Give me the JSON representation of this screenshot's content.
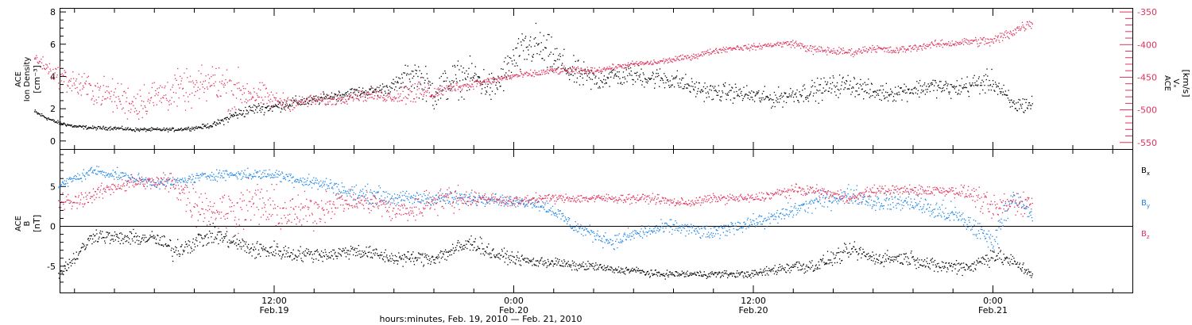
{
  "chart_data": [
    {
      "type": "scatter",
      "panel": "top",
      "ylabel_left_lines": [
        "ACE",
        "Ion Density"
      ],
      "ylabel_left_unit": "[cm⁻³]",
      "ylabel_right_lines": [
        "ACE",
        "Vₓ"
      ],
      "ylabel_right_unit": "[km/s]",
      "left_axis": {
        "ylim": [
          -0.5,
          8.2
        ],
        "ticks": [
          "0",
          "2",
          "4",
          "6",
          "8"
        ],
        "tick_values": [
          0,
          2,
          4,
          6,
          8
        ]
      },
      "right_axis": {
        "ylim": [
          -560,
          -345
        ],
        "ticks": [
          "-350",
          "-400",
          "-450",
          "-500",
          "-550"
        ],
        "tick_values": [
          -350,
          -400,
          -450,
          -500,
          -550
        ],
        "color": "#e0315c"
      },
      "series": [
        {
          "axis": "left",
          "color": "#000000",
          "x_hours": [
            0,
            1,
            2,
            3,
            4,
            5,
            6,
            7,
            8,
            9,
            10,
            11,
            12,
            13,
            14,
            15,
            16,
            17,
            18,
            19,
            20,
            21,
            22,
            23,
            24,
            25,
            26,
            27,
            28,
            29,
            30,
            31,
            32,
            33,
            34,
            35,
            36,
            37,
            38,
            39,
            40,
            41,
            42,
            43,
            44,
            45,
            46,
            47,
            48,
            49,
            50
          ],
          "values": [
            1.8,
            1.2,
            0.9,
            0.8,
            0.8,
            0.7,
            0.7,
            0.7,
            0.8,
            1.0,
            1.6,
            2.0,
            2.1,
            2.4,
            2.5,
            2.8,
            3.0,
            3.1,
            3.4,
            4.2,
            3.0,
            3.8,
            4.0,
            3.2,
            5.0,
            6.0,
            5.1,
            4.2,
            3.8,
            4.0,
            4.1,
            3.9,
            3.8,
            3.3,
            3.0,
            3.0,
            2.8,
            2.6,
            2.9,
            3.1,
            3.4,
            3.5,
            3.0,
            3.0,
            3.2,
            3.4,
            3.2,
            3.5,
            3.7,
            2.2,
            2.3
          ],
          "spread": [
            0.15,
            0.1,
            0.1,
            0.1,
            0.1,
            0.1,
            0.1,
            0.1,
            0.1,
            0.15,
            0.3,
            0.3,
            0.3,
            0.3,
            0.3,
            0.3,
            0.3,
            0.3,
            0.4,
            0.9,
            1.0,
            1.0,
            0.9,
            0.9,
            1.0,
            1.2,
            1.0,
            0.8,
            0.7,
            0.6,
            0.6,
            0.6,
            0.6,
            0.5,
            0.5,
            0.5,
            0.5,
            0.5,
            0.5,
            0.6,
            0.6,
            0.6,
            0.5,
            0.5,
            0.5,
            0.5,
            0.5,
            0.6,
            0.6,
            0.5,
            0.5
          ]
        },
        {
          "axis": "right",
          "color": "#e0315c",
          "x_hours": [
            0,
            1,
            2,
            3,
            4,
            5,
            6,
            7,
            8,
            9,
            10,
            11,
            12,
            13,
            14,
            15,
            16,
            17,
            18,
            19,
            20,
            21,
            22,
            23,
            24,
            25,
            26,
            27,
            28,
            29,
            30,
            31,
            32,
            33,
            34,
            35,
            36,
            37,
            38,
            39,
            40,
            41,
            42,
            43,
            44,
            45,
            46,
            47,
            48,
            49,
            50
          ],
          "values": [
            -420,
            -445,
            -460,
            -470,
            -480,
            -490,
            -480,
            -470,
            -470,
            -455,
            -470,
            -475,
            -485,
            -490,
            -485,
            -485,
            -478,
            -478,
            -480,
            -470,
            -475,
            -465,
            -460,
            -455,
            -448,
            -445,
            -440,
            -440,
            -440,
            -435,
            -430,
            -428,
            -423,
            -418,
            -410,
            -405,
            -404,
            -400,
            -398,
            -408,
            -410,
            -412,
            -405,
            -410,
            -405,
            -400,
            -398,
            -395,
            -395,
            -380,
            -365
          ],
          "spread": [
            8,
            12,
            20,
            20,
            22,
            25,
            25,
            25,
            25,
            25,
            30,
            20,
            12,
            10,
            8,
            8,
            8,
            8,
            8,
            20,
            10,
            6,
            6,
            5,
            5,
            5,
            5,
            5,
            4,
            4,
            4,
            4,
            4,
            4,
            4,
            4,
            4,
            4,
            5,
            6,
            6,
            5,
            5,
            5,
            5,
            5,
            5,
            6,
            8,
            8,
            8
          ]
        }
      ]
    },
    {
      "type": "scatter",
      "panel": "bottom",
      "ylabel_left_lines": [
        "ACE",
        "B"
      ],
      "ylabel_left_unit": "[nT]",
      "ylim": [
        -8.3,
        9.6
      ],
      "ticks": [
        "5",
        "0",
        "-5"
      ],
      "tick_values": [
        5,
        0,
        -5
      ],
      "zero_line": true,
      "x_label": "hours:minutes, Feb. 19, 2010 — Feb. 21, 2010",
      "x_ticks": [
        {
          "hour": 12,
          "time": "12:00",
          "date": "Feb.19"
        },
        {
          "hour": 24,
          "time": "0:00",
          "date": "Feb.20"
        },
        {
          "hour": 36,
          "time": "12:00",
          "date": "Feb.20"
        },
        {
          "hour": 48,
          "time": "0:00",
          "date": "Feb.21"
        }
      ],
      "x_range_hours": [
        1.2,
        55.5
      ],
      "series": [
        {
          "name": "Bₓ",
          "legend_main": "B",
          "legend_sub": "x",
          "color": "#000000",
          "x_hours": [
            1.2,
            2,
            3,
            4,
            5,
            6,
            7,
            8,
            9,
            10,
            11,
            12,
            13,
            14,
            15,
            16,
            17,
            18,
            19,
            20,
            21,
            22,
            23,
            24,
            25,
            26,
            27,
            28,
            29,
            30,
            31,
            32,
            33,
            34,
            35,
            36,
            37,
            38,
            39,
            40,
            41,
            42,
            43,
            44,
            45,
            46,
            47,
            48,
            49,
            50
          ],
          "values": [
            -6,
            -4,
            -1,
            -1.5,
            -1.5,
            -1.5,
            -3,
            -2,
            -1,
            -2,
            -3,
            -3,
            -3.5,
            -3.5,
            -3.5,
            -3,
            -3.5,
            -4,
            -4,
            -4,
            -3,
            -2,
            -3.5,
            -4,
            -4.5,
            -4.5,
            -5,
            -5,
            -5.5,
            -5.5,
            -6,
            -6,
            -6,
            -6,
            -6,
            -6,
            -5.5,
            -5,
            -5,
            -4,
            -3,
            -4,
            -4,
            -4,
            -5,
            -5,
            -5,
            -3.5,
            -4.5,
            -6
          ],
          "spread": [
            0.6,
            0.8,
            0.8,
            0.8,
            0.8,
            0.8,
            1.2,
            1.0,
            1.0,
            1.0,
            1.0,
            1.0,
            0.8,
            0.8,
            0.8,
            0.8,
            0.8,
            0.8,
            0.8,
            0.8,
            1.0,
            1.0,
            0.8,
            0.6,
            0.6,
            0.6,
            0.5,
            0.5,
            0.4,
            0.4,
            0.4,
            0.4,
            0.4,
            0.4,
            0.4,
            0.4,
            0.6,
            0.8,
            0.8,
            0.8,
            1.0,
            0.8,
            0.8,
            0.8,
            0.8,
            0.8,
            0.9,
            1.0,
            0.8,
            0.5
          ]
        },
        {
          "name": "Bᵧ",
          "legend_main": "B",
          "legend_sub": "y",
          "color": "#1e86e5",
          "x_hours": [
            1.2,
            2,
            3,
            4,
            5,
            6,
            7,
            8,
            9,
            10,
            11,
            12,
            13,
            14,
            15,
            16,
            17,
            18,
            19,
            20,
            21,
            22,
            23,
            24,
            25,
            26,
            27,
            28,
            29,
            30,
            31,
            32,
            33,
            34,
            35,
            36,
            37,
            38,
            39,
            40,
            41,
            42,
            43,
            44,
            45,
            46,
            47,
            48,
            49,
            50
          ],
          "values": [
            5,
            6,
            7,
            6.5,
            6,
            5.5,
            5.5,
            6,
            6.5,
            6.5,
            6.5,
            6.5,
            6,
            5.5,
            5,
            4,
            4,
            3.5,
            3.5,
            3.5,
            3.5,
            3.5,
            3.5,
            3,
            3,
            2,
            0,
            -1,
            -2,
            -1,
            -0.5,
            0,
            -0.5,
            -1,
            0,
            0.5,
            1,
            2,
            3,
            3.5,
            4,
            3,
            3,
            3,
            2,
            1.5,
            0,
            -2,
            4,
            1
          ],
          "spread": [
            0.5,
            0.6,
            0.6,
            0.6,
            0.6,
            0.6,
            0.6,
            0.6,
            0.6,
            0.6,
            0.6,
            0.6,
            0.8,
            0.8,
            0.8,
            1.0,
            1.0,
            0.8,
            0.8,
            0.8,
            0.8,
            0.8,
            0.6,
            0.6,
            0.6,
            0.8,
            0.8,
            0.8,
            0.8,
            0.8,
            0.8,
            0.8,
            0.8,
            0.8,
            0.8,
            0.8,
            0.8,
            1.0,
            1.0,
            1.0,
            1.0,
            1.0,
            1.0,
            1.0,
            1.2,
            1.2,
            1.2,
            1.2,
            1.0,
            0.8
          ]
        },
        {
          "name": "B_z",
          "legend_main": "B",
          "legend_sub": "z",
          "color": "#e0315c",
          "x_hours": [
            1.2,
            2,
            3,
            4,
            5,
            6,
            7,
            8,
            9,
            10,
            11,
            12,
            13,
            14,
            15,
            16,
            17,
            18,
            19,
            20,
            21,
            22,
            23,
            24,
            25,
            26,
            27,
            28,
            29,
            30,
            31,
            32,
            33,
            34,
            35,
            36,
            37,
            38,
            39,
            40,
            41,
            42,
            43,
            44,
            45,
            46,
            47,
            48,
            49,
            50
          ],
          "values": [
            3,
            3,
            4,
            5,
            5.5,
            5.5,
            5.5,
            3,
            2,
            2,
            3,
            2,
            1.5,
            2,
            3,
            3,
            3,
            2,
            2,
            3.5,
            3.5,
            3.5,
            3.5,
            3,
            3.5,
            3.5,
            3.5,
            3.5,
            3.5,
            3.5,
            3.5,
            3,
            3,
            3.5,
            3.5,
            3.5,
            4,
            4.5,
            4.5,
            4,
            3.5,
            4.5,
            4.5,
            4.5,
            4.5,
            4.5,
            4,
            2,
            3,
            3
          ],
          "spread": [
            1.0,
            1.0,
            0.8,
            0.8,
            0.8,
            0.8,
            1.5,
            2.5,
            2.0,
            2.5,
            2.5,
            2.5,
            2.0,
            2.0,
            1.5,
            1.2,
            1.2,
            1.5,
            1.5,
            1.5,
            1.5,
            0.8,
            0.6,
            0.6,
            0.5,
            0.5,
            0.5,
            0.5,
            0.5,
            0.5,
            0.5,
            0.5,
            0.5,
            0.5,
            0.5,
            0.5,
            0.6,
            0.6,
            0.6,
            0.6,
            0.6,
            0.6,
            0.6,
            0.6,
            0.6,
            0.6,
            1.0,
            1.5,
            1.5,
            1.0
          ]
        }
      ]
    }
  ]
}
